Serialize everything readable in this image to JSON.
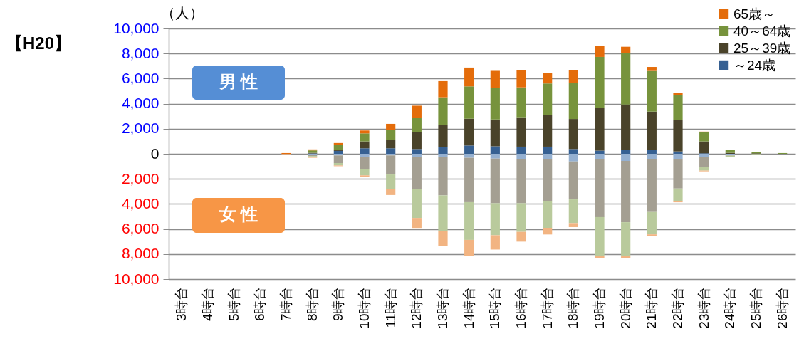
{
  "chart_data": {
    "type": "bar",
    "stacked": true,
    "ylabel": "（人）",
    "annotations": [
      "【H20】",
      "男 性",
      "女 性"
    ],
    "categories": [
      "3時台",
      "4時台",
      "5時台",
      "6時台",
      "7時台",
      "8時台",
      "9時台",
      "10時台",
      "11時台",
      "12時台",
      "13時台",
      "14時台",
      "15時台",
      "16時台",
      "17時台",
      "18時台",
      "19時台",
      "20時台",
      "21時台",
      "22時台",
      "23時台",
      "24時台",
      "25時台",
      "26時台"
    ],
    "ylim": [
      -10000,
      10000
    ],
    "yticks": [
      {
        "value": -10000,
        "label": "10,000"
      },
      {
        "value": -8000,
        "label": "8,000"
      },
      {
        "value": -6000,
        "label": "6,000"
      },
      {
        "value": -4000,
        "label": "4,000"
      },
      {
        "value": -2000,
        "label": "2,000"
      },
      0,
      {
        "value": 2000,
        "label": "2,000"
      },
      {
        "value": 4000,
        "label": "4,000"
      },
      {
        "value": 6000,
        "label": "6,000"
      },
      {
        "value": 8000,
        "label": "8,000"
      },
      {
        "value": 10000,
        "label": "10,000"
      }
    ],
    "grid": "y",
    "legend": "top right",
    "series": [
      {
        "name": "～24歳",
        "color": "#366092",
        "values": [
          null,
          null,
          null,
          null,
          null,
          30,
          230,
          440,
          440,
          380,
          510,
          660,
          600,
          570,
          570,
          380,
          250,
          300,
          300,
          190,
          40,
          null,
          null,
          null
        ]
      },
      {
        "name": "25～39歳",
        "color": "#4a432a",
        "values": [
          null,
          null,
          null,
          null,
          null,
          50,
          80,
          550,
          660,
          1340,
          1780,
          2140,
          2140,
          2290,
          2520,
          2400,
          3390,
          3640,
          3070,
          2520,
          950,
          80,
          40,
          null
        ]
      },
      {
        "name": "40～64歳",
        "color": "#77933c",
        "values": [
          null,
          null,
          null,
          null,
          null,
          190,
          400,
          640,
          780,
          1120,
          2220,
          2580,
          2500,
          2440,
          2520,
          2880,
          4090,
          4070,
          3240,
          1990,
          740,
          260,
          130,
          60
        ]
      },
      {
        "name": "65歳～",
        "color": "#e46c0a",
        "values": [
          null,
          null,
          null,
          null,
          60,
          80,
          150,
          230,
          510,
          1000,
          1290,
          1500,
          1380,
          1360,
          810,
          1000,
          850,
          530,
          320,
          130,
          40,
          null,
          null,
          null
        ]
      },
      {
        "color": "#95b0d0",
        "values": [
          null,
          null,
          null,
          null,
          null,
          -80,
          -130,
          -230,
          -130,
          -230,
          -230,
          -320,
          -380,
          -450,
          -440,
          -610,
          -450,
          -570,
          -450,
          -440,
          -230,
          -100,
          null,
          null
        ]
      },
      {
        "color": "#a49f92",
        "values": [
          null,
          null,
          null,
          null,
          null,
          -100,
          -610,
          -1020,
          -1520,
          -2560,
          -3090,
          -3540,
          -3560,
          -3490,
          -3350,
          -3030,
          -4600,
          -4890,
          -4200,
          -2330,
          -830,
          -50,
          null,
          null
        ]
      },
      {
        "color": "#b9ca9c",
        "values": [
          null,
          null,
          null,
          null,
          null,
          -100,
          -190,
          -470,
          -1190,
          -2330,
          -2840,
          -3010,
          -2560,
          -2290,
          -2120,
          -1890,
          -3090,
          -2690,
          -1780,
          -1020,
          -280,
          -80,
          -40,
          null
        ]
      },
      {
        "color": "#f2b482",
        "values": [
          null,
          null,
          null,
          null,
          -40,
          -40,
          -60,
          -150,
          -450,
          -800,
          -1170,
          -1270,
          -1140,
          -780,
          -530,
          -320,
          -210,
          -150,
          -130,
          -80,
          -60,
          null,
          null,
          null
        ]
      }
    ]
  }
}
